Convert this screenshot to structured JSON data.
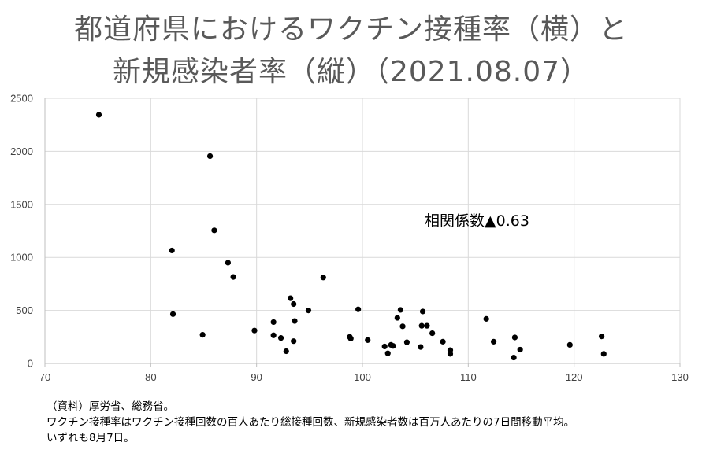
{
  "title_line1": "都道府県におけるワクチン接種率（横）と",
  "title_line2": "新規感染者率（縦）（2021.08.07）",
  "notes": [
    "（資料）厚労省、総務省。",
    "ワクチン接種率はワクチン接種回数の百人あたり総接種回数、新規感染者数は百万人あたりの7日間移動平均。",
    "いずれも8月7日。"
  ],
  "chart_data": {
    "type": "scatter",
    "title": "",
    "xlabel": "",
    "ylabel": "",
    "xlim": [
      70,
      130
    ],
    "ylim": [
      0,
      2500
    ],
    "xticks": [
      70,
      80,
      90,
      100,
      110,
      120,
      130
    ],
    "yticks": [
      0,
      500,
      1000,
      1500,
      2000,
      2500
    ],
    "xtick_labels": [
      "70",
      "80",
      "90",
      "100",
      "110",
      "120",
      "130"
    ],
    "ytick_labels": [
      "0",
      "500",
      "1000",
      "1500",
      "2000",
      "2500"
    ],
    "grid": true,
    "annotation": "相関係数▲0.63",
    "marker_color": "#000000",
    "points": [
      {
        "x": 75.1,
        "y": 2345
      },
      {
        "x": 85.6,
        "y": 1955
      },
      {
        "x": 86.0,
        "y": 1255
      },
      {
        "x": 82.0,
        "y": 1065
      },
      {
        "x": 87.3,
        "y": 950
      },
      {
        "x": 87.8,
        "y": 815
      },
      {
        "x": 96.3,
        "y": 810
      },
      {
        "x": 82.1,
        "y": 465
      },
      {
        "x": 84.9,
        "y": 270
      },
      {
        "x": 89.8,
        "y": 310
      },
      {
        "x": 91.6,
        "y": 390
      },
      {
        "x": 91.6,
        "y": 265
      },
      {
        "x": 92.3,
        "y": 240
      },
      {
        "x": 92.8,
        "y": 115
      },
      {
        "x": 93.2,
        "y": 615
      },
      {
        "x": 93.5,
        "y": 560
      },
      {
        "x": 93.6,
        "y": 400
      },
      {
        "x": 93.5,
        "y": 210
      },
      {
        "x": 94.9,
        "y": 500
      },
      {
        "x": 98.8,
        "y": 250
      },
      {
        "x": 98.9,
        "y": 235
      },
      {
        "x": 99.6,
        "y": 510
      },
      {
        "x": 100.5,
        "y": 220
      },
      {
        "x": 102.1,
        "y": 160
      },
      {
        "x": 102.4,
        "y": 95
      },
      {
        "x": 102.7,
        "y": 175
      },
      {
        "x": 102.9,
        "y": 165
      },
      {
        "x": 103.3,
        "y": 430
      },
      {
        "x": 103.6,
        "y": 505
      },
      {
        "x": 103.8,
        "y": 350
      },
      {
        "x": 104.2,
        "y": 200
      },
      {
        "x": 105.5,
        "y": 155
      },
      {
        "x": 105.6,
        "y": 355
      },
      {
        "x": 105.7,
        "y": 490
      },
      {
        "x": 106.1,
        "y": 355
      },
      {
        "x": 106.6,
        "y": 285
      },
      {
        "x": 107.6,
        "y": 205
      },
      {
        "x": 108.3,
        "y": 125
      },
      {
        "x": 108.3,
        "y": 90
      },
      {
        "x": 111.7,
        "y": 420
      },
      {
        "x": 112.4,
        "y": 205
      },
      {
        "x": 114.3,
        "y": 55
      },
      {
        "x": 114.4,
        "y": 245
      },
      {
        "x": 114.9,
        "y": 130
      },
      {
        "x": 119.6,
        "y": 175
      },
      {
        "x": 122.6,
        "y": 255
      },
      {
        "x": 122.8,
        "y": 90
      }
    ]
  }
}
